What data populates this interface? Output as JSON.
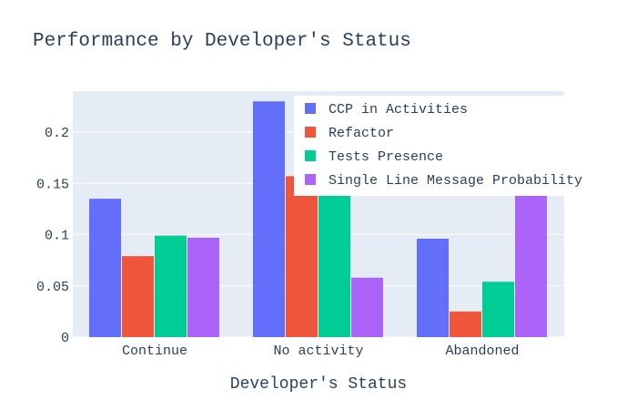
{
  "chart_data": {
    "type": "bar",
    "title": "Performance by Developer's Status",
    "xlabel": "Developer's Status",
    "ylabel": "",
    "categories": [
      "Continue",
      "No activity",
      "Abandoned"
    ],
    "series": [
      {
        "name": "CCP in Activities",
        "values": [
          0.135,
          0.23,
          0.096
        ],
        "color": "#636efa"
      },
      {
        "name": "Refactor",
        "values": [
          0.079,
          0.157,
          0.025
        ],
        "color": "#ef553b"
      },
      {
        "name": "Tests Presence",
        "values": [
          0.099,
          0.14,
          0.054
        ],
        "color": "#00cc96"
      },
      {
        "name": "Single Line Message Probability",
        "values": [
          0.097,
          0.058,
          0.138
        ],
        "color": "#ab63fa"
      }
    ],
    "ylim": [
      0,
      0.24
    ],
    "yticks": [
      0,
      0.05,
      0.1,
      0.15,
      0.2
    ],
    "ytick_labels": [
      "0",
      "0.05",
      "0.1",
      "0.15",
      "0.2"
    ],
    "grid": true,
    "legend_position": "top-right",
    "plot_background": "#e5ecf6"
  }
}
